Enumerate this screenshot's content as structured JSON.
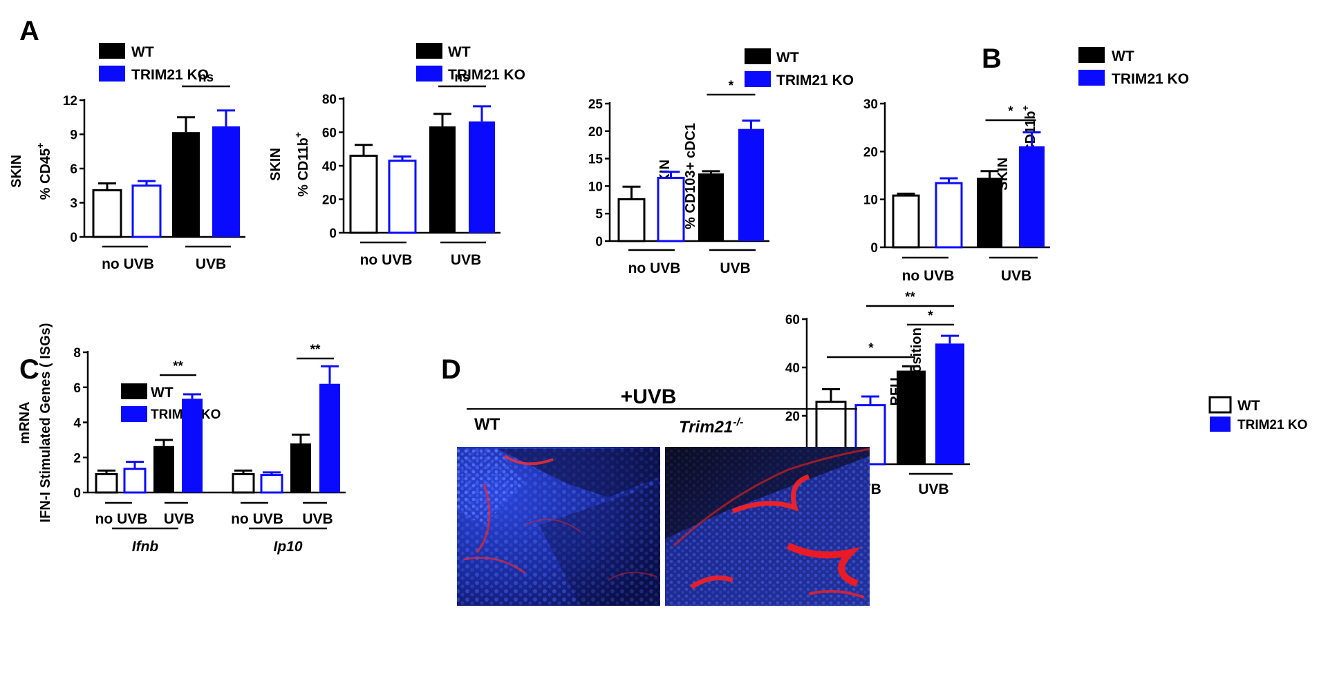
{
  "panel_labels": {
    "A": "A",
    "B": "B",
    "C": "C",
    "D": "D"
  },
  "colors": {
    "wt": "#000000",
    "ko": "#0a0aff",
    "axis": "#000000"
  },
  "legend": {
    "wt": "WT",
    "ko": "TRIM21 KO"
  },
  "chart_data": [
    {
      "id": "a1",
      "type": "bar",
      "panel": "A",
      "ylabel": [
        "SKIN",
        "% CD45+"
      ],
      "ylim": [
        0,
        12
      ],
      "yticks": [
        0,
        3,
        6,
        9,
        12
      ],
      "bars": [
        {
          "group": "no UVB",
          "genotype": "WT",
          "value": 4.1,
          "err": 0.6,
          "fill": "white"
        },
        {
          "group": "no UVB",
          "genotype": "TRIM21 KO",
          "value": 4.5,
          "err": 0.4,
          "fill": "white"
        },
        {
          "group": "UVB",
          "genotype": "WT",
          "value": 9.2,
          "err": 1.3,
          "fill": "solid"
        },
        {
          "group": "UVB",
          "genotype": "TRIM21 KO",
          "value": 9.7,
          "err": 1.4,
          "fill": "solid"
        }
      ],
      "groups": [
        "no UVB",
        "UVB"
      ],
      "significance": [
        {
          "from": 2,
          "to": 3,
          "label": "ns"
        }
      ]
    },
    {
      "id": "a2",
      "type": "bar",
      "panel": "A",
      "ylabel": [
        "SKIN",
        "% CD11b+"
      ],
      "ylim": [
        0,
        80
      ],
      "yticks": [
        0,
        20,
        40,
        60,
        80
      ],
      "bars": [
        {
          "group": "no UVB",
          "genotype": "WT",
          "value": 46,
          "err": 6.5,
          "fill": "white"
        },
        {
          "group": "no UVB",
          "genotype": "TRIM21 KO",
          "value": 43,
          "err": 2.5,
          "fill": "white"
        },
        {
          "group": "UVB",
          "genotype": "WT",
          "value": 63.5,
          "err": 7.5,
          "fill": "solid"
        },
        {
          "group": "UVB",
          "genotype": "TRIM21 KO",
          "value": 66.5,
          "err": 9,
          "fill": "solid"
        }
      ],
      "groups": [
        "no UVB",
        "UVB"
      ],
      "significance": [
        {
          "from": 2,
          "to": 3,
          "label": "ns"
        }
      ]
    },
    {
      "id": "a3",
      "type": "bar",
      "panel": "A",
      "ylabel": [
        "SKIN",
        "% CD103+ cDC1"
      ],
      "ylim": [
        0,
        25
      ],
      "yticks": [
        0,
        5,
        10,
        15,
        20,
        25
      ],
      "bars": [
        {
          "group": "no UVB",
          "genotype": "WT",
          "value": 7.6,
          "err": 2.3,
          "fill": "white"
        },
        {
          "group": "no UVB",
          "genotype": "TRIM21 KO",
          "value": 11.5,
          "err": 1.1,
          "fill": "white"
        },
        {
          "group": "UVB",
          "genotype": "WT",
          "value": 12.3,
          "err": 0.4,
          "fill": "solid"
        },
        {
          "group": "UVB",
          "genotype": "TRIM21 KO",
          "value": 20.4,
          "err": 1.5,
          "fill": "solid"
        }
      ],
      "groups": [
        "no UVB",
        "UVB"
      ],
      "significance": [
        {
          "from": 2,
          "to": 3,
          "label": "*"
        }
      ]
    },
    {
      "id": "b",
      "type": "bar",
      "panel": "B",
      "ylabel": [
        "SKIN",
        "% Siglec1 on CD11b+"
      ],
      "ylim": [
        0,
        30
      ],
      "yticks": [
        0,
        10,
        20,
        30
      ],
      "bars": [
        {
          "group": "no UVB",
          "genotype": "WT",
          "value": 10.8,
          "err": 0.4,
          "fill": "white"
        },
        {
          "group": "no UVB",
          "genotype": "TRIM21 KO",
          "value": 13.4,
          "err": 1,
          "fill": "white"
        },
        {
          "group": "UVB",
          "genotype": "WT",
          "value": 14.5,
          "err": 1.4,
          "fill": "solid"
        },
        {
          "group": "UVB",
          "genotype": "TRIM21 KO",
          "value": 21.1,
          "err": 2.9,
          "fill": "solid"
        }
      ],
      "groups": [
        "no UVB",
        "UVB"
      ],
      "significance": [
        {
          "from": 2,
          "to": 3,
          "label": "*"
        }
      ]
    },
    {
      "id": "c",
      "type": "bar",
      "panel": "C",
      "ylabel": [
        "mRNA",
        "IFN-I Stimulated Genes ( ISGs)"
      ],
      "ylim": [
        0,
        8
      ],
      "yticks": [
        0,
        2,
        4,
        6,
        8
      ],
      "bars": [
        {
          "group": "no UVB",
          "gene": "Ifnb",
          "genotype": "WT",
          "value": 1.05,
          "err": 0.2,
          "fill": "white"
        },
        {
          "group": "no UVB",
          "gene": "Ifnb",
          "genotype": "TRIM21 KO",
          "value": 1.35,
          "err": 0.4,
          "fill": "white"
        },
        {
          "group": "UVB",
          "gene": "Ifnb",
          "genotype": "WT",
          "value": 2.65,
          "err": 0.35,
          "fill": "solid"
        },
        {
          "group": "UVB",
          "gene": "Ifnb",
          "genotype": "TRIM21 KO",
          "value": 5.35,
          "err": 0.25,
          "fill": "solid"
        },
        {
          "group": "no UVB",
          "gene": "Ip10",
          "genotype": "WT",
          "value": 1.05,
          "err": 0.2,
          "fill": "white"
        },
        {
          "group": "no UVB",
          "gene": "Ip10",
          "genotype": "TRIM21 KO",
          "value": 1.0,
          "err": 0.15,
          "fill": "white"
        },
        {
          "group": "UVB",
          "gene": "Ip10",
          "genotype": "WT",
          "value": 2.8,
          "err": 0.5,
          "fill": "solid"
        },
        {
          "group": "UVB",
          "gene": "Ip10",
          "genotype": "TRIM21 KO",
          "value": 6.2,
          "err": 1.0,
          "fill": "solid"
        }
      ],
      "groups": [
        "no UVB",
        "UVB",
        "no UVB",
        "UVB"
      ],
      "genes": [
        "Ifnb",
        "Ip10"
      ],
      "significance": [
        {
          "from": 2,
          "to": 3,
          "label": "**"
        },
        {
          "from": 6,
          "to": 7,
          "label": "**"
        }
      ]
    },
    {
      "id": "d",
      "type": "bar",
      "panel": "D",
      "ylabel": [
        "RFU",
        "skin IgG deposition"
      ],
      "ylim": [
        0,
        60
      ],
      "yticks": [
        0,
        20,
        40,
        60
      ],
      "bars": [
        {
          "group": "non UVB",
          "genotype": "WT",
          "value": 25.8,
          "err": 5.2,
          "fill": "white"
        },
        {
          "group": "non UVB",
          "genotype": "TRIM21 KO",
          "value": 24.4,
          "err": 3.6,
          "fill": "white"
        },
        {
          "group": "UVB",
          "genotype": "WT",
          "value": 38.7,
          "err": 1.8,
          "fill": "solid"
        },
        {
          "group": "UVB",
          "genotype": "TRIM21 KO",
          "value": 49.9,
          "err": 3.2,
          "fill": "solid"
        }
      ],
      "groups": [
        "non UVB",
        "UVB"
      ],
      "significance": [
        {
          "from": 2,
          "to": 3,
          "label": "*"
        },
        {
          "from": 0,
          "to": 2,
          "label": "*"
        },
        {
          "from": 1,
          "to": 3,
          "label": "**"
        }
      ]
    }
  ],
  "micrographs": {
    "header": "+UVB",
    "left_label": "WT",
    "right_label_base": "Trim21",
    "right_label_sup": "-/-"
  }
}
